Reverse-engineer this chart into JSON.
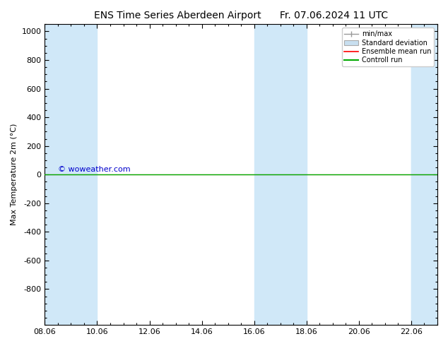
{
  "title": "ENS Time Series Aberdeen Airport",
  "date_label": "Fr. 07.06.2024 11 UTC",
  "ylabel": "Max Temperature 2m (°C)",
  "watermark": "© woweather.com",
  "ylim_top": -1050,
  "ylim_bottom": 1050,
  "yticks": [
    -800,
    -600,
    -400,
    -200,
    0,
    200,
    400,
    600,
    800,
    1000
  ],
  "xtick_labels": [
    "08.06",
    "10.06",
    "12.06",
    "14.06",
    "16.06",
    "18.06",
    "20.06",
    "22.06"
  ],
  "xtick_positions": [
    0,
    2,
    4,
    6,
    8,
    10,
    12,
    14
  ],
  "shaded_ranges": [
    [
      0,
      2
    ],
    [
      8,
      10
    ],
    [
      14,
      16
    ]
  ],
  "shaded_color": "#d0e8f8",
  "xlim": [
    0,
    15
  ],
  "green_line_y": 0,
  "green_line_color": "#00aa00",
  "red_line_color": "#ff0000",
  "legend_items": [
    "min/max",
    "Standard deviation",
    "Ensemble mean run",
    "Controll run"
  ],
  "bg_color": "#ffffff",
  "plot_bg_color": "#ffffff",
  "border_color": "#000000",
  "watermark_color": "#0000cc",
  "title_fontsize": 10,
  "axis_fontsize": 8,
  "tick_fontsize": 8
}
